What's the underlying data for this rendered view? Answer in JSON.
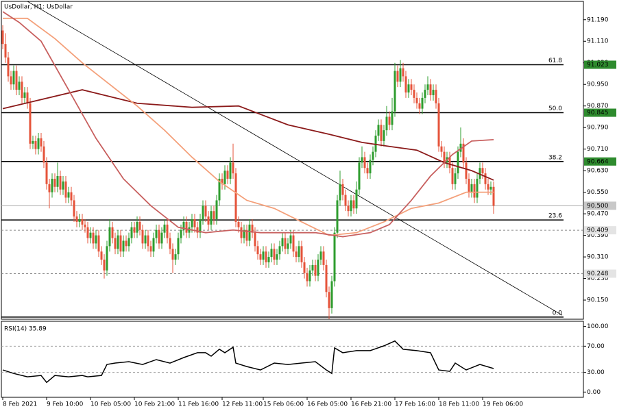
{
  "chart_data": [
    {
      "type": "candlestick",
      "title": "UsDollar, H1:  UsDollar",
      "up_color": "#2e9c2e",
      "down_color": "#e5533a",
      "open": [
        91.15,
        91.1,
        91.05,
        90.98,
        90.95,
        91.0,
        90.93,
        90.96,
        90.9,
        90.92,
        90.88,
        90.73,
        90.74,
        90.71,
        90.75,
        90.72,
        90.66,
        90.58,
        90.55,
        90.6,
        90.57,
        90.61,
        90.56,
        90.59,
        90.53,
        90.55,
        90.52,
        90.46,
        90.44,
        90.45,
        90.43,
        90.42,
        90.38,
        90.4,
        90.36,
        90.39,
        90.33,
        90.3,
        90.26,
        90.35,
        90.42,
        90.38,
        90.34,
        90.39,
        90.33,
        90.37,
        90.35,
        90.38,
        90.42,
        90.4,
        90.44,
        90.41,
        90.36,
        90.39,
        90.35,
        90.33,
        90.38,
        90.41,
        90.36,
        90.4,
        90.43,
        90.38,
        90.34,
        90.3,
        90.32,
        90.38,
        90.41,
        90.44,
        90.4,
        90.42,
        90.45,
        90.42,
        90.4,
        90.45,
        90.5,
        90.46,
        90.43,
        90.48,
        90.45,
        90.52,
        90.6,
        90.58,
        90.63,
        90.6,
        90.66,
        90.62,
        90.44,
        90.42,
        90.38,
        90.41,
        90.37,
        90.43,
        90.4,
        90.35,
        90.32,
        90.3,
        90.33,
        90.29,
        90.31,
        90.34,
        90.3,
        90.32,
        90.35,
        90.38,
        90.34,
        90.36,
        90.39,
        90.33,
        90.31,
        90.35,
        90.29,
        90.25,
        90.22,
        90.26,
        90.28,
        90.24,
        90.3,
        90.33,
        90.28,
        90.18,
        90.12,
        90.22,
        90.4,
        90.52,
        90.58,
        90.54,
        90.5,
        90.48,
        90.52,
        90.49,
        90.56,
        90.66,
        90.68,
        90.64,
        90.62,
        90.67,
        90.7,
        90.76,
        90.8,
        90.74,
        90.78,
        90.83,
        90.8,
        90.85,
        91.0,
        90.96,
        91.01,
        90.98,
        90.92,
        90.95,
        90.93,
        90.9,
        90.88,
        90.86,
        90.9,
        90.93,
        90.95,
        90.91,
        90.93,
        90.88,
        90.72,
        90.7,
        90.66,
        90.68,
        90.64,
        90.58,
        90.62,
        90.7,
        90.73,
        90.66,
        90.6,
        90.55,
        90.58,
        90.53,
        90.6,
        90.64,
        90.62,
        90.58,
        90.56,
        90.57
      ],
      "high": [
        91.17,
        91.14,
        91.07,
        91.0,
        91.02,
        91.02,
        90.98,
        90.98,
        90.94,
        90.94,
        90.9,
        90.76,
        90.76,
        90.77,
        90.77,
        90.74,
        90.68,
        90.6,
        90.62,
        90.62,
        90.66,
        90.63,
        90.61,
        90.61,
        90.57,
        90.57,
        90.54,
        90.48,
        90.47,
        90.47,
        90.45,
        90.44,
        90.42,
        90.42,
        90.41,
        90.41,
        90.35,
        90.32,
        90.37,
        90.45,
        90.44,
        90.4,
        90.41,
        90.41,
        90.39,
        90.39,
        90.4,
        90.44,
        90.44,
        90.46,
        90.46,
        90.43,
        90.41,
        90.41,
        90.37,
        90.4,
        90.43,
        90.43,
        90.42,
        90.45,
        90.45,
        90.4,
        90.36,
        90.34,
        90.4,
        90.43,
        90.46,
        90.46,
        90.44,
        90.47,
        90.47,
        90.44,
        90.47,
        90.52,
        90.52,
        90.48,
        90.5,
        90.5,
        90.54,
        90.62,
        90.62,
        90.65,
        90.65,
        90.68,
        90.73,
        90.64,
        90.46,
        90.44,
        90.43,
        90.43,
        90.45,
        90.45,
        90.42,
        90.37,
        90.34,
        90.35,
        90.35,
        90.33,
        90.36,
        90.36,
        90.34,
        90.37,
        90.4,
        90.4,
        90.38,
        90.41,
        90.41,
        90.35,
        90.37,
        90.37,
        90.31,
        90.27,
        90.28,
        90.3,
        90.3,
        90.32,
        90.35,
        90.35,
        90.3,
        90.2,
        90.24,
        90.42,
        90.54,
        90.63,
        90.6,
        90.56,
        90.52,
        90.54,
        90.54,
        90.59,
        90.68,
        90.72,
        90.7,
        90.66,
        90.69,
        90.72,
        90.78,
        90.82,
        90.82,
        90.8,
        90.87,
        90.85,
        90.9,
        91.03,
        91.02,
        91.04,
        91.03,
        91.0,
        90.97,
        90.97,
        90.95,
        90.92,
        90.9,
        90.92,
        90.95,
        90.98,
        90.97,
        90.95,
        90.95,
        90.9,
        90.74,
        90.72,
        90.7,
        90.7,
        90.66,
        90.64,
        90.72,
        90.79,
        90.75,
        90.68,
        90.62,
        90.6,
        90.6,
        90.62,
        90.66,
        90.66,
        90.64,
        90.6,
        90.59,
        90.59
      ],
      "low": [
        91.08,
        91.03,
        90.96,
        90.93,
        90.93,
        90.91,
        90.91,
        90.88,
        90.88,
        90.86,
        90.71,
        90.71,
        90.69,
        90.69,
        90.7,
        90.64,
        90.56,
        90.49,
        90.53,
        90.55,
        90.55,
        90.54,
        90.54,
        90.51,
        90.51,
        90.5,
        90.44,
        90.42,
        90.42,
        90.41,
        90.4,
        90.36,
        90.36,
        90.34,
        90.34,
        90.31,
        90.28,
        90.23,
        90.24,
        90.33,
        90.36,
        90.32,
        90.32,
        90.31,
        90.31,
        90.33,
        90.33,
        90.36,
        90.38,
        90.38,
        90.39,
        90.34,
        90.34,
        90.33,
        90.31,
        90.31,
        90.36,
        90.34,
        90.34,
        90.38,
        90.36,
        90.32,
        90.25,
        90.28,
        90.3,
        90.36,
        90.39,
        90.38,
        90.38,
        90.4,
        90.4,
        90.38,
        90.38,
        90.43,
        90.44,
        90.41,
        90.41,
        90.43,
        90.43,
        90.5,
        90.56,
        90.56,
        90.58,
        90.58,
        90.6,
        90.42,
        90.4,
        90.36,
        90.36,
        90.35,
        90.35,
        90.38,
        90.33,
        90.3,
        90.28,
        90.28,
        90.27,
        90.27,
        90.29,
        90.28,
        90.28,
        90.3,
        90.33,
        90.32,
        90.32,
        90.34,
        90.31,
        90.29,
        90.29,
        90.27,
        90.23,
        90.2,
        90.2,
        90.24,
        90.22,
        90.22,
        90.28,
        90.26,
        90.16,
        90.08,
        90.1,
        90.2,
        90.38,
        90.5,
        90.52,
        90.48,
        90.46,
        90.46,
        90.47,
        90.47,
        90.54,
        90.64,
        90.62,
        90.6,
        90.6,
        90.65,
        90.68,
        90.74,
        90.72,
        90.72,
        90.76,
        90.78,
        90.78,
        90.83,
        90.94,
        90.94,
        90.96,
        90.9,
        90.9,
        90.91,
        90.88,
        90.86,
        90.84,
        90.84,
        90.88,
        90.91,
        90.89,
        90.89,
        90.86,
        90.7,
        90.68,
        90.64,
        90.64,
        90.62,
        90.56,
        90.56,
        90.6,
        90.68,
        90.64,
        90.58,
        90.53,
        90.53,
        90.51,
        90.51,
        90.58,
        90.6,
        90.56,
        90.54,
        90.54,
        90.47
      ],
      "close": [
        91.1,
        91.05,
        90.98,
        90.95,
        91.0,
        90.93,
        90.96,
        90.9,
        90.92,
        90.88,
        90.73,
        90.74,
        90.71,
        90.75,
        90.72,
        90.66,
        90.58,
        90.55,
        90.6,
        90.57,
        90.61,
        90.56,
        90.59,
        90.53,
        90.55,
        90.52,
        90.46,
        90.44,
        90.45,
        90.43,
        90.42,
        90.38,
        90.4,
        90.36,
        90.39,
        90.33,
        90.3,
        90.26,
        90.35,
        90.42,
        90.38,
        90.34,
        90.39,
        90.33,
        90.37,
        90.35,
        90.38,
        90.42,
        90.4,
        90.44,
        90.41,
        90.36,
        90.39,
        90.35,
        90.33,
        90.38,
        90.41,
        90.36,
        90.4,
        90.43,
        90.38,
        90.34,
        90.3,
        90.32,
        90.38,
        90.41,
        90.44,
        90.4,
        90.42,
        90.45,
        90.42,
        90.4,
        90.45,
        90.5,
        90.46,
        90.43,
        90.48,
        90.45,
        90.52,
        90.6,
        90.58,
        90.63,
        90.6,
        90.66,
        90.62,
        90.44,
        90.42,
        90.38,
        90.41,
        90.37,
        90.43,
        90.4,
        90.35,
        90.32,
        90.3,
        90.33,
        90.29,
        90.31,
        90.34,
        90.3,
        90.32,
        90.35,
        90.38,
        90.34,
        90.36,
        90.39,
        90.33,
        90.31,
        90.35,
        90.29,
        90.25,
        90.22,
        90.26,
        90.28,
        90.24,
        90.3,
        90.33,
        90.28,
        90.18,
        90.12,
        90.22,
        90.4,
        90.52,
        90.58,
        90.54,
        90.5,
        90.48,
        90.52,
        90.49,
        90.56,
        90.66,
        90.68,
        90.64,
        90.62,
        90.67,
        90.7,
        90.76,
        90.8,
        90.74,
        90.78,
        90.83,
        90.8,
        90.85,
        91.0,
        90.96,
        91.01,
        90.98,
        90.92,
        90.95,
        90.93,
        90.9,
        90.88,
        90.86,
        90.9,
        90.93,
        90.95,
        90.91,
        90.93,
        90.88,
        90.72,
        90.7,
        90.66,
        90.68,
        90.64,
        90.58,
        90.62,
        90.7,
        90.73,
        90.66,
        90.6,
        90.55,
        90.58,
        90.53,
        90.6,
        90.64,
        90.62,
        90.58,
        90.56,
        90.57,
        90.5
      ],
      "lines": [
        {
          "color": "#8b1a1a",
          "x": [
            0,
            29,
            49,
            69,
            86,
            104,
            119,
            131,
            141,
            151,
            161,
            171,
            179
          ],
          "values": [
            90.86,
            90.93,
            90.88,
            90.865,
            90.87,
            90.8,
            90.765,
            90.735,
            90.72,
            90.706,
            90.66,
            90.63,
            90.595
          ]
        },
        {
          "color": "#f4a07a",
          "x": [
            0,
            9,
            19,
            29,
            39,
            49,
            59,
            69,
            79,
            89,
            99,
            109,
            119,
            129,
            139,
            149,
            159,
            169,
            179
          ],
          "values": [
            91.195,
            91.195,
            91.12,
            91.03,
            90.95,
            90.87,
            90.78,
            90.68,
            90.59,
            90.52,
            90.49,
            90.44,
            90.39,
            90.4,
            90.44,
            90.49,
            90.51,
            90.55,
            90.55
          ]
        },
        {
          "color": "#c8605f",
          "x": [
            0,
            6,
            14,
            24,
            34,
            44,
            54,
            64,
            74,
            84,
            94,
            104,
            114,
            124,
            134,
            141,
            149,
            156,
            164,
            171,
            179
          ],
          "values": [
            91.22,
            91.18,
            91.11,
            90.93,
            90.75,
            90.6,
            90.5,
            90.42,
            90.4,
            90.41,
            90.4,
            90.4,
            90.4,
            90.385,
            90.4,
            90.43,
            90.52,
            90.61,
            90.69,
            90.74,
            90.745
          ]
        }
      ],
      "trendline": {
        "color": "#000000",
        "x": [
          9,
          204
        ],
        "values": [
          91.258,
          90.094
        ]
      },
      "fib_levels": [
        {
          "label": "61.8",
          "price": 91.023
        },
        {
          "label": "50.0",
          "price": 90.845
        },
        {
          "label": "38.2",
          "price": 90.664
        },
        {
          "label": "23.6",
          "price": 90.447
        },
        {
          "label": "0.0",
          "price": 90.087
        }
      ],
      "price_marks": [
        {
          "price": 91.023,
          "bg": "#2e8b2e",
          "text": "#ffffff"
        },
        {
          "price": 90.845,
          "bg": "#2e8b2e",
          "text": "#ffffff"
        },
        {
          "price": 90.664,
          "bg": "#2e8b2e",
          "text": "#ffffff"
        },
        {
          "price": {
            "value": 90.5,
            "label": "90.500"
          },
          "bg": "#c8c8c8",
          "text": "#000000",
          "line": "solid"
        },
        {
          "price": 90.409,
          "bg": "#e4e4e4",
          "text": "#000000",
          "line": "dashed"
        },
        {
          "price": 90.248,
          "bg": "#e4e4e4",
          "text": "#000000",
          "line": "dashed"
        }
      ],
      "xlim": [
        -0.5,
        211.75
      ],
      "ylim": [
        90.079,
        91.258
      ],
      "yticks": [
        {
          "value": 91.19,
          "label": "91.190"
        },
        {
          "value": 91.11,
          "label": "91.110"
        },
        {
          "value": 91.03,
          "label": "91.030"
        },
        {
          "value": 90.95,
          "label": "90.950"
        },
        {
          "value": 90.87,
          "label": "90.870"
        },
        {
          "value": 90.79,
          "label": "90.790"
        },
        {
          "value": 90.71,
          "label": "90.710"
        },
        {
          "value": 90.63,
          "label": "90.630"
        },
        {
          "value": 90.55,
          "label": "90.550"
        },
        {
          "value": 90.47,
          "label": "90.470"
        },
        {
          "value": 90.39,
          "label": "90.390"
        },
        {
          "value": 90.31,
          "label": "90.310"
        },
        {
          "value": 90.23,
          "label": "90.230"
        },
        {
          "value": 90.15,
          "label": "90.150"
        }
      ]
    },
    {
      "type": "line",
      "title": "RSI(14) 35.89",
      "series": [
        {
          "color": "#000000",
          "x": [
            0,
            4,
            9,
            14,
            16,
            19,
            24,
            29,
            31,
            36,
            38,
            41,
            46,
            51,
            56,
            61,
            66,
            71,
            74,
            76,
            79,
            81,
            84,
            85,
            89,
            94,
            99,
            104,
            109,
            114,
            118,
            120,
            121,
            124,
            129,
            134,
            139,
            143,
            146,
            151,
            156,
            159,
            163,
            165,
            169,
            174,
            179
          ],
          "values": [
            33.7,
            28.4,
            23.2,
            25.3,
            14.7,
            25.3,
            23.2,
            25.3,
            23.2,
            25.3,
            42.1,
            44.2,
            46.3,
            42.1,
            49.5,
            44.2,
            52.6,
            60,
            60,
            54.7,
            65.3,
            60,
            68.4,
            44.2,
            38.9,
            33.7,
            44.2,
            42.1,
            44.2,
            46.3,
            33.7,
            28.4,
            67.4,
            60,
            63.2,
            63.2,
            70.5,
            77.9,
            65.3,
            63.2,
            60,
            33.7,
            31.6,
            44.2,
            33.7,
            42.1,
            35.89
          ]
        }
      ],
      "levels": [
        70,
        30
      ],
      "xlim": [
        -0.5,
        211.75
      ],
      "ylim": [
        -8,
        108
      ],
      "yticks": [
        {
          "value": 100,
          "label": "100.00"
        },
        {
          "value": 70,
          "label": "70.00"
        },
        {
          "value": 30,
          "label": "30.00"
        },
        {
          "value": 0,
          "label": "0.00"
        }
      ],
      "xticks": [
        {
          "value": 0,
          "label": "8 Feb 2021"
        },
        {
          "value": 16,
          "label": "9 Feb 10:00"
        },
        {
          "value": 32,
          "label": "10 Feb 05:00"
        },
        {
          "value": 48,
          "label": "10 Feb 21:00"
        },
        {
          "value": 64,
          "label": "11 Feb 16:00"
        },
        {
          "value": 80,
          "label": "12 Feb 11:00"
        },
        {
          "value": 95,
          "label": "15 Feb 06:00"
        },
        {
          "value": 111,
          "label": "16 Feb 05:00"
        },
        {
          "value": 127,
          "label": "16 Feb 21:00"
        },
        {
          "value": 143,
          "label": "17 Feb 16:00"
        },
        {
          "value": 159,
          "label": "18 Feb 11:00"
        },
        {
          "value": 175,
          "label": "19 Feb 06:00"
        }
      ]
    }
  ]
}
